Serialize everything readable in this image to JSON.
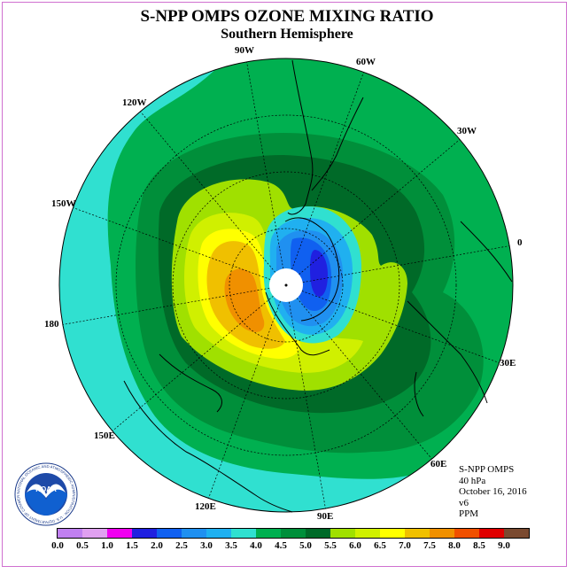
{
  "title": "S-NPP OMPS OZONE MIXING RATIO",
  "subtitle": "Southern Hemisphere",
  "longitude_labels": [
    "90W",
    "60W",
    "30W",
    "0",
    "30E",
    "60E",
    "90E",
    "120E",
    "150E",
    "180",
    "150W",
    "120W"
  ],
  "info": {
    "instrument": "S-NPP OMPS",
    "level": "40 hPa",
    "date": "October 16, 2016",
    "version": "v6",
    "units": "PPM"
  },
  "legend": {
    "ticks": [
      "0.0",
      "0.5",
      "1.0",
      "1.5",
      "2.0",
      "2.5",
      "3.0",
      "3.5",
      "4.0",
      "4.5",
      "5.0",
      "5.5",
      "6.0",
      "6.5",
      "7.0",
      "7.5",
      "8.0",
      "8.5",
      "9.0"
    ],
    "colors": [
      "#c080f0",
      "#e0a0f0",
      "#f000f0",
      "#2020e0",
      "#1060f0",
      "#2090f0",
      "#20b0f0",
      "#30e0d0",
      "#00b050",
      "#008f3a",
      "#006a28",
      "#a0e000",
      "#d0f000",
      "#ffff00",
      "#f0c000",
      "#f09000",
      "#f05000",
      "#e00000",
      "#7a4a30"
    ]
  },
  "logo_text": {
    "center": "NOAA",
    "ring": "NATIONAL OCEANIC AND ATMOSPHERIC ADMINISTRATION · U.S. DEPARTMENT OF COMMERCE"
  }
}
